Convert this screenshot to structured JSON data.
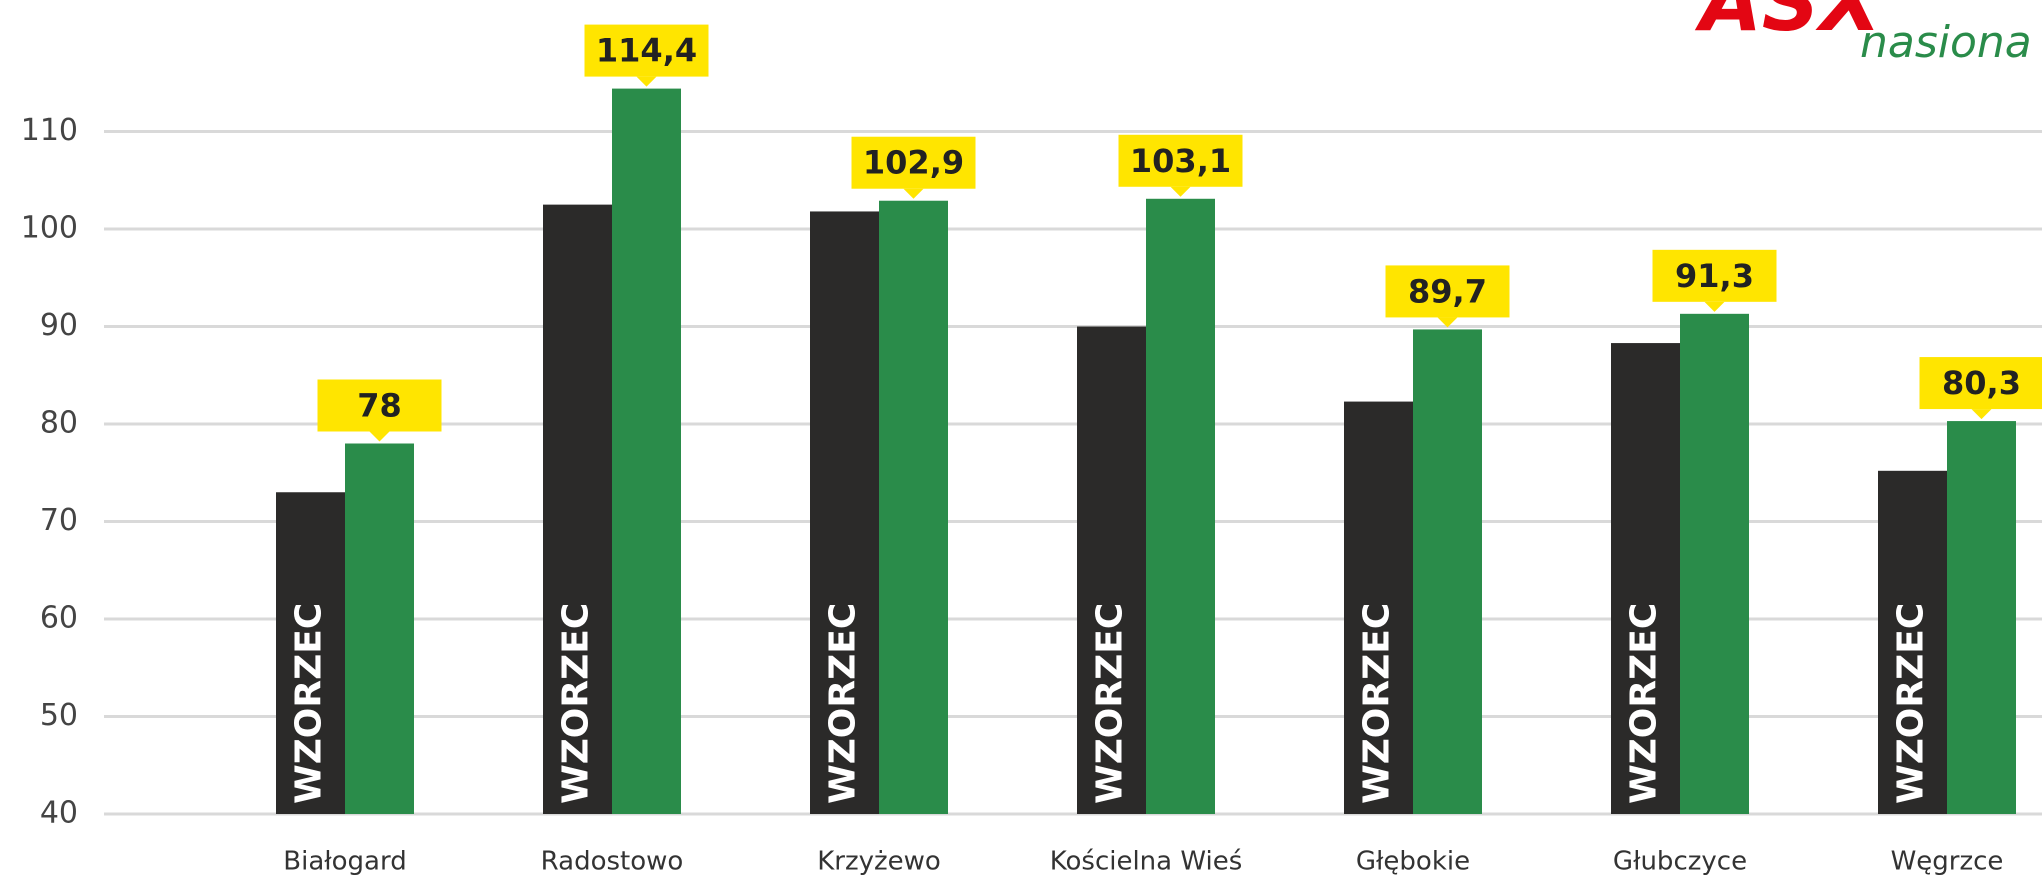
{
  "chart_data": {
    "type": "bar",
    "logo": {
      "mark": "ASX",
      "tagline": "nasiona"
    },
    "categories": [
      "Białogard",
      "Radostowo",
      "Krzyżewo",
      "Kościelna Wieś",
      "Głębokie",
      "Głubczyce",
      "Węgrzce"
    ],
    "series": [
      {
        "name": "WZORZEC",
        "color": "#2b2a29",
        "values": [
          73,
          102.5,
          101.8,
          90,
          82.3,
          88.3,
          75.2
        ]
      },
      {
        "color": "#2a8c4a",
        "values": [
          78,
          114.4,
          102.9,
          103.1,
          89.7,
          91.3,
          80.3
        ],
        "value_labels": [
          "78",
          "114,4",
          "102,9",
          "103,1",
          "89,7",
          "91,3",
          "80,3"
        ]
      }
    ],
    "label_color": "#ffe500",
    "ylim": [
      40,
      120
    ],
    "yticks": [
      40,
      50,
      60,
      70,
      80,
      90,
      100,
      110
    ],
    "grid": true
  }
}
